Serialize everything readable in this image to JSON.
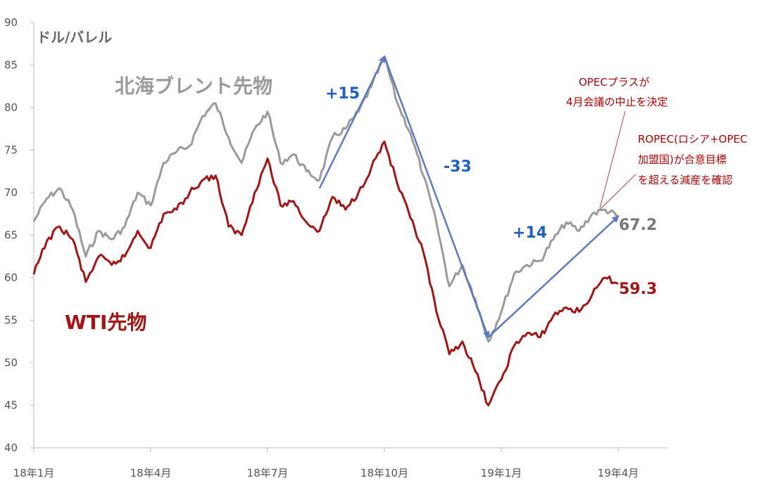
{
  "chart_data": {
    "type": "line",
    "ylabel": "ドル/バレル",
    "ylim": [
      40,
      90
    ],
    "yticks": [
      40,
      45,
      50,
      55,
      60,
      65,
      70,
      75,
      80,
      85,
      90
    ],
    "x_ticks": [
      "18年1月",
      "18年4月",
      "18年7月",
      "18年10月",
      "19年1月",
      "19年4月"
    ],
    "grid": false,
    "series": [
      {
        "name": "北海ブレント先物",
        "color": "#9a9a9a",
        "end_label": "67.2",
        "values": [
          [
            "18年1月",
            66.6
          ],
          [
            "18年1月中旬",
            69.3
          ],
          [
            "18年1月下旬",
            70.5
          ],
          [
            "18年2月上旬",
            68.0
          ],
          [
            "18年2月中旬",
            62.5
          ],
          [
            "18年2月下旬",
            65.5
          ],
          [
            "18年3月上旬",
            64.5
          ],
          [
            "18年3月中旬",
            66.0
          ],
          [
            "18年3月下旬",
            70.0
          ],
          [
            "18年4月上旬",
            68.5
          ],
          [
            "18年4月中旬",
            73.5
          ],
          [
            "18年4月下旬",
            74.8
          ],
          [
            "18年5月上旬",
            75.5
          ],
          [
            "18年5月中旬",
            79.0
          ],
          [
            "18年5月下旬",
            80.5
          ],
          [
            "18年6月上旬",
            76.5
          ],
          [
            "18年6月中旬",
            73.5
          ],
          [
            "18年6月下旬",
            77.5
          ],
          [
            "18年7月上旬",
            79.5
          ],
          [
            "18年7月中旬",
            73.5
          ],
          [
            "18年7月下旬",
            74.5
          ],
          [
            "18年8月上旬",
            72.5
          ],
          [
            "18年8月中旬",
            71.5
          ],
          [
            "18年8月下旬",
            76.5
          ],
          [
            "18年9月上旬",
            77.5
          ],
          [
            "18年9月中旬",
            79.5
          ],
          [
            "18年9月下旬",
            82.5
          ],
          [
            "18年10月上旬",
            86.0
          ],
          [
            "18年10月中旬",
            80.5
          ],
          [
            "18年10月下旬",
            77.0
          ],
          [
            "18年11月上旬",
            72.0
          ],
          [
            "18年11月中旬",
            66.5
          ],
          [
            "18年11月下旬",
            59.0
          ],
          [
            "18年12月上旬",
            61.5
          ],
          [
            "18年12月中旬",
            57.5
          ],
          [
            "18年12月下旬",
            52.5
          ],
          [
            "19年1月上旬",
            56.0
          ],
          [
            "19年1月中旬",
            60.5
          ],
          [
            "19年1月下旬",
            61.5
          ],
          [
            "19年2月上旬",
            62.0
          ],
          [
            "19年2月中旬",
            64.5
          ],
          [
            "19年2月下旬",
            66.5
          ],
          [
            "19年3月上旬",
            65.5
          ],
          [
            "19年3月中旬",
            67.5
          ],
          [
            "19年3月下旬",
            68.0
          ],
          [
            "19年4月",
            67.2
          ]
        ]
      },
      {
        "name": "WTI先物",
        "color": "#a31515",
        "end_label": "59.3",
        "values": [
          [
            "18年1月",
            60.4
          ],
          [
            "18年1月中旬",
            64.3
          ],
          [
            "18年1月下旬",
            66.0
          ],
          [
            "18年2月上旬",
            64.5
          ],
          [
            "18年2月中旬",
            59.5
          ],
          [
            "18年2月下旬",
            62.5
          ],
          [
            "18年3月上旬",
            61.5
          ],
          [
            "18年3月中旬",
            62.5
          ],
          [
            "18年3月下旬",
            65.5
          ],
          [
            "18年4月上旬",
            63.5
          ],
          [
            "18年4月中旬",
            67.5
          ],
          [
            "18年4月下旬",
            68.0
          ],
          [
            "18年5月上旬",
            70.0
          ],
          [
            "18年5月中旬",
            71.5
          ],
          [
            "18年5月下旬",
            72.0
          ],
          [
            "18年6月上旬",
            66.0
          ],
          [
            "18年6月中旬",
            65.0
          ],
          [
            "18年6月下旬",
            70.0
          ],
          [
            "18年7月上旬",
            74.0
          ],
          [
            "18年7月中旬",
            68.5
          ],
          [
            "18年7月下旬",
            69.0
          ],
          [
            "18年8月上旬",
            66.5
          ],
          [
            "18年8月中旬",
            65.5
          ],
          [
            "18年8月下旬",
            69.5
          ],
          [
            "18年9月上旬",
            68.0
          ],
          [
            "18年9月中旬",
            70.0
          ],
          [
            "18年9月下旬",
            73.0
          ],
          [
            "18年10月上旬",
            76.0
          ],
          [
            "18年10月中旬",
            71.0
          ],
          [
            "18年10月下旬",
            67.0
          ],
          [
            "18年11月上旬",
            63.0
          ],
          [
            "18年11月中旬",
            56.0
          ],
          [
            "18年11月下旬",
            51.0
          ],
          [
            "18年12月上旬",
            52.5
          ],
          [
            "18年12月中旬",
            49.0
          ],
          [
            "18年12月下旬",
            45.0
          ],
          [
            "19年1月上旬",
            48.0
          ],
          [
            "19年1月中旬",
            52.0
          ],
          [
            "19年1月下旬",
            53.5
          ],
          [
            "19年2月上旬",
            53.0
          ],
          [
            "19年2月中旬",
            55.5
          ],
          [
            "19年2月下旬",
            56.5
          ],
          [
            "19年3月上旬",
            56.0
          ],
          [
            "19年3月中旬",
            58.0
          ],
          [
            "19年3月下旬",
            60.0
          ],
          [
            "19年4月",
            59.3
          ]
        ]
      }
    ],
    "change_arrows": [
      {
        "label": "+15",
        "from": [
          "18年8月中旬",
          70.5
        ],
        "to": [
          "18年10月上旬",
          86.0
        ]
      },
      {
        "label": "-33",
        "from": [
          "18年10月上旬",
          86.0
        ],
        "to": [
          "18年12月下旬",
          53.0
        ]
      },
      {
        "label": "+14",
        "from": [
          "18年12月下旬",
          53.0
        ],
        "to": [
          "19年4月",
          67.2
        ]
      }
    ],
    "annotations": {
      "opec_plus": [
        "OPECプラスが",
        "4月会議の中止を決定"
      ],
      "ropec": [
        "ROPEC(ロシア+OPEC",
        "加盟国)が合意目標",
        "を超える減産を確認"
      ]
    }
  }
}
